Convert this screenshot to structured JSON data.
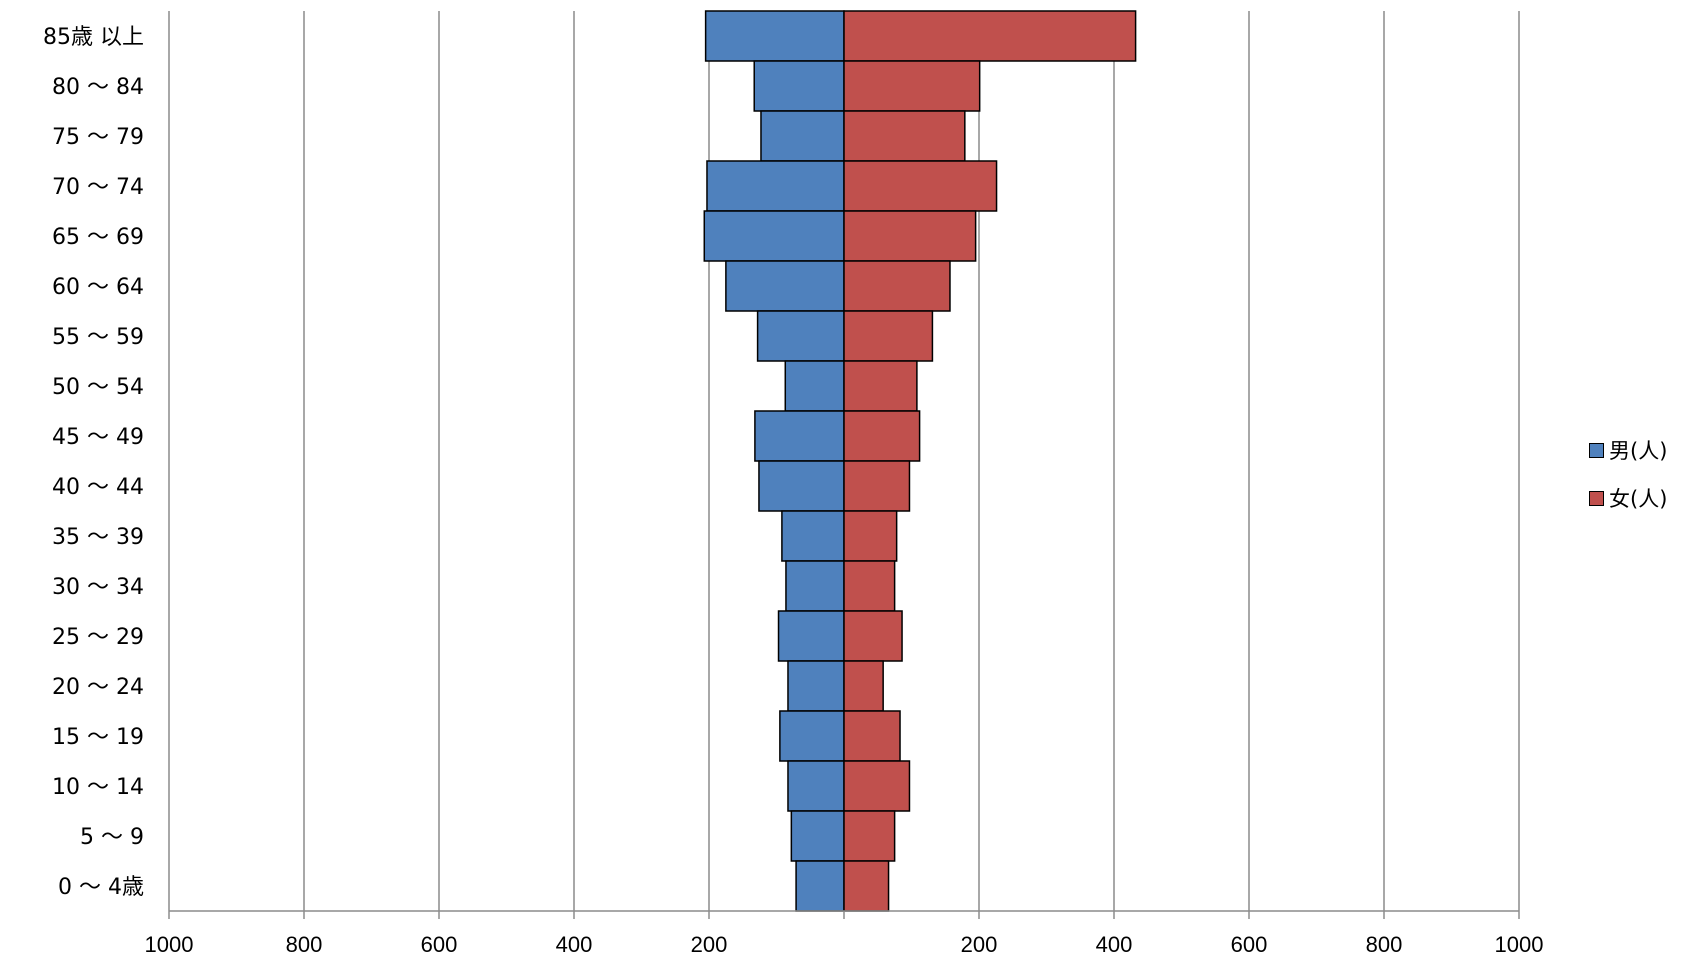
{
  "chart_data": {
    "type": "bar",
    "orientation": "horizontal",
    "layout": "population-pyramid",
    "categories": [
      "85歳 以上",
      "80 〜 84",
      "75 〜 79",
      "70 〜 74",
      "65 〜 69",
      "60 〜 64",
      "55 〜 59",
      "50 〜 54",
      "45 〜 49",
      "40 〜 44",
      "35 〜 39",
      "30 〜 34",
      "25 〜 29",
      "20 〜 24",
      "15 〜 19",
      "10 〜 14",
      "5 〜 9",
      "0 〜 4歳"
    ],
    "series": [
      {
        "name": "男(人)",
        "color": "#4f81bd",
        "side": "left",
        "values": [
          205,
          133,
          123,
          203,
          207,
          175,
          128,
          87,
          132,
          126,
          92,
          86,
          97,
          83,
          95,
          83,
          78,
          71
        ]
      },
      {
        "name": "女(人)",
        "color": "#c0504d",
        "side": "right",
        "values": [
          432,
          201,
          179,
          226,
          195,
          157,
          131,
          108,
          112,
          97,
          78,
          75,
          86,
          58,
          83,
          97,
          75,
          66
        ]
      }
    ],
    "xlim": [
      -1000,
      1000
    ],
    "x_ticks": [
      -1000,
      -800,
      -600,
      -400,
      -200,
      0,
      200,
      400,
      600,
      800,
      1000
    ],
    "x_tick_labels": [
      "1000",
      "800",
      "600",
      "400",
      "200",
      "",
      "200",
      "400",
      "600",
      "800",
      "1000"
    ],
    "grid": true,
    "legend_position": "right",
    "title": "",
    "xlabel": "",
    "ylabel": ""
  }
}
